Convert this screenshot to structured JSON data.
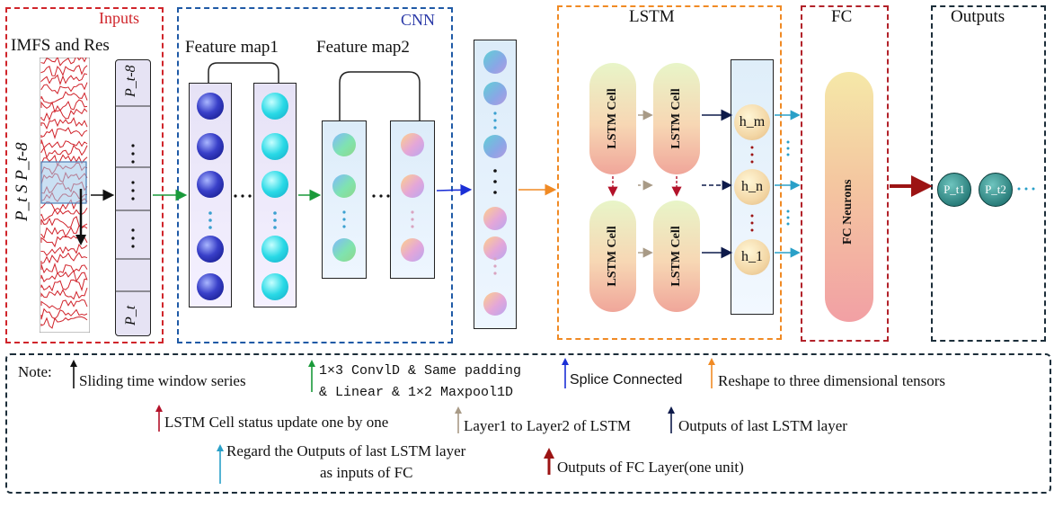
{
  "panels": {
    "inputs": "Inputs",
    "cnn": "CNN",
    "lstm": "LSTM",
    "fc": "FC",
    "outputs": "Outputs"
  },
  "inputs": {
    "series_title": "IMFS and Res",
    "window_label": "P_t S P_t-8",
    "cell_top": "P_t-8",
    "cell_bottom": "P_t"
  },
  "cnn": {
    "feature_map1": "Feature map1",
    "feature_map2": "Feature map2"
  },
  "lstm": {
    "cell_label": "LSTM Cell",
    "h_top": "h_m",
    "h_mid": "h_n",
    "h_bot": "h_1"
  },
  "fc": {
    "neurons": "FC Neurons"
  },
  "outputs": {
    "p1": "P_t1",
    "p2": "P_t2"
  },
  "note": {
    "title": "Note:",
    "items": [
      "Sliding time window series",
      "1×3 ConvlD & Same padding",
      "& Linear & 1×2 Maxpool1D",
      "Splice Connected",
      "Reshape to three dimensional tensors",
      "LSTM Cell status update one by one",
      "Layer1 to Layer2 of LSTM",
      "Outputs of last LSTM layer",
      "Regard the Outputs of last LSTM layer",
      "as inputs of FC",
      "Outputs of FC Layer(one unit)"
    ]
  },
  "colors": {
    "inputs_border": "#d0252b",
    "cnn_border": "#1f5aa6",
    "lstm_border": "#f08a24",
    "fc_border": "#b2222a",
    "outputs_border": "#1c2e3a",
    "note_border": "#1c2e3a",
    "arrow_black": "#111111",
    "arrow_green": "#1a9a3a",
    "arrow_blue": "#1b2fd6",
    "arrow_orange": "#f08a24",
    "arrow_red": "#b3122a",
    "arrow_tan": "#a89a86",
    "arrow_navy": "#0d1a4a",
    "arrow_cyan": "#2aa0c8",
    "arrow_darkred": "#9c1414"
  }
}
